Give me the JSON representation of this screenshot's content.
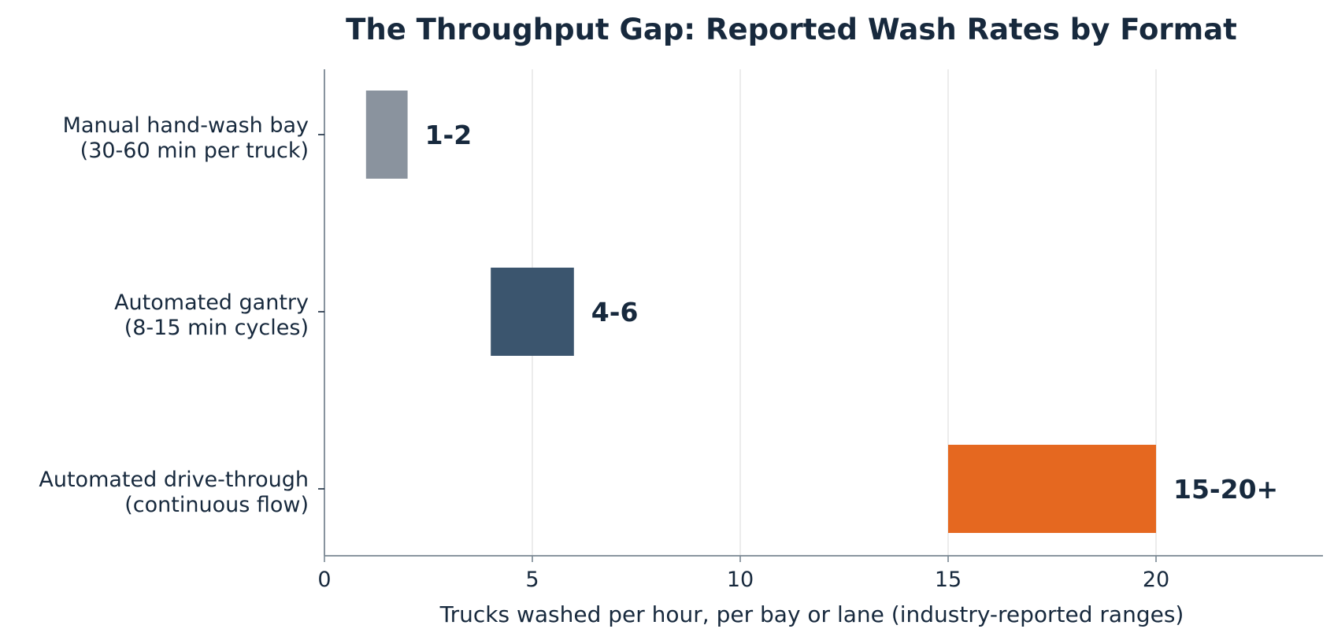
{
  "chart_data": {
    "type": "bar",
    "orientation": "horizontal",
    "title": "The Throughput Gap: Reported Wash Rates by Format",
    "xlabel": "Trucks washed per hour, per bay or lane (industry-reported ranges)",
    "ylabel": "",
    "xlim": [
      0,
      24
    ],
    "xticks": [
      0,
      5,
      10,
      15,
      20
    ],
    "grid": "vertical",
    "legend": "none",
    "categories": [
      [
        "Manual hand-wash bay",
        "(30-60 min per truck)"
      ],
      [
        "Automated gantry",
        "(8-15 min cycles)"
      ],
      [
        "Automated drive-through",
        "(continuous flow)"
      ]
    ],
    "ranges": [
      {
        "start": 1,
        "end": 2,
        "label": "1-2",
        "color": "#8a939e"
      },
      {
        "start": 4,
        "end": 6,
        "label": "4-6",
        "color": "#3b556e"
      },
      {
        "start": 15,
        "end": 20,
        "label": "15-20+",
        "color": "#e56820"
      }
    ],
    "text_color": "#17293d",
    "axis_color": "#7a8793",
    "grid_color": "#e0e0e0"
  }
}
